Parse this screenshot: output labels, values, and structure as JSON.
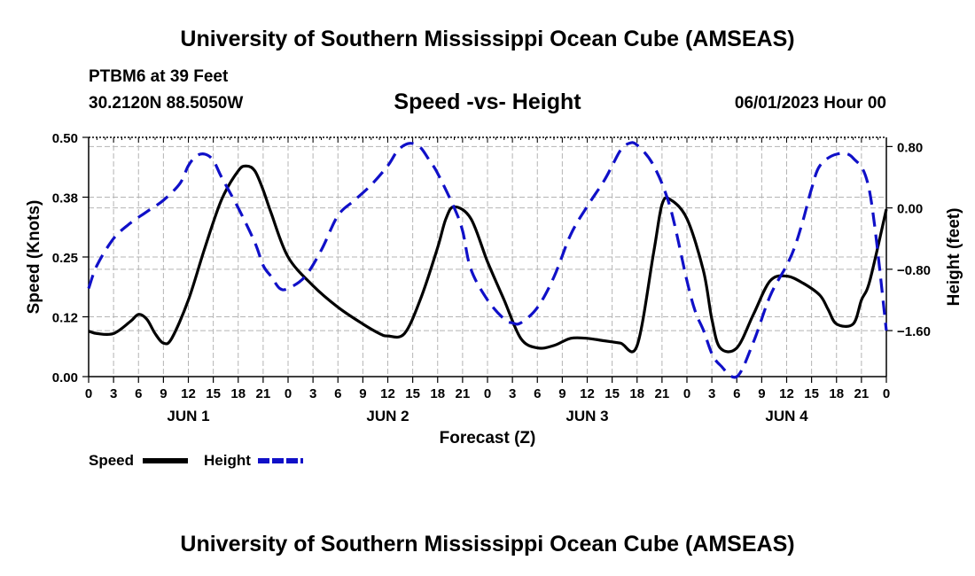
{
  "header": {
    "title": "University of Southern Mississippi Ocean Cube (AMSEAS)",
    "station": "PTBM6 at 39 Feet",
    "coords": "30.2120N  88.5050W",
    "subtitle": "Speed -vs- Height",
    "date": "06/01/2023 Hour 00"
  },
  "footer": {
    "title": "University of Southern Mississippi Ocean Cube (AMSEAS)"
  },
  "legend": {
    "speed_label": "Speed",
    "height_label": "Height"
  },
  "colors": {
    "speed": "#000000",
    "height": "#1010c8",
    "grid": "#b4b4b4"
  },
  "chart_data": {
    "type": "line",
    "title": "Speed -vs- Height",
    "xlabel": "Forecast (Z)",
    "ylabel": "Speed (Knots)",
    "y2label": "Height (feet)",
    "xlim": [
      0,
      96
    ],
    "ylim": [
      0,
      0.5
    ],
    "y2lim": [
      -2.2,
      0.92
    ],
    "x_ticks": [
      0,
      3,
      6,
      9,
      12,
      15,
      18,
      21,
      24,
      27,
      30,
      33,
      36,
      39,
      42,
      45,
      48,
      51,
      54,
      57,
      60,
      63,
      66,
      69,
      72,
      75,
      78,
      81,
      84,
      87,
      90,
      93,
      96
    ],
    "x_tick_labels": [
      "0",
      "3",
      "6",
      "9",
      "12",
      "15",
      "18",
      "21",
      "0",
      "3",
      "6",
      "9",
      "12",
      "15",
      "18",
      "21",
      "0",
      "3",
      "6",
      "9",
      "12",
      "15",
      "18",
      "21",
      "0",
      "3",
      "6",
      "9",
      "12",
      "15",
      "18",
      "21",
      "0"
    ],
    "day_labels": [
      {
        "x": 12,
        "label": "JUN 1"
      },
      {
        "x": 36,
        "label": "JUN 2"
      },
      {
        "x": 60,
        "label": "JUN 3"
      },
      {
        "x": 84,
        "label": "JUN 4"
      }
    ],
    "y_ticks": [
      0,
      0.125,
      0.25,
      0.375,
      0.5
    ],
    "y_tick_labels": [
      "0.00",
      "0.12",
      "0.25",
      "0.38",
      "0.50"
    ],
    "y2_ticks": [
      0.8,
      0,
      -0.8,
      -1.6
    ],
    "y2_tick_labels": [
      "0.80",
      "0.00",
      "−0.80",
      "−1.60"
    ],
    "grid": true,
    "series": [
      {
        "name": "Speed",
        "axis": "left",
        "style": "solid",
        "x": [
          0,
          1,
          3,
          5,
          6,
          7,
          8,
          9,
          10,
          12,
          14,
          16,
          18,
          19,
          20,
          21,
          22,
          24,
          27,
          30,
          33,
          35,
          36,
          38,
          40,
          42,
          43,
          44,
          46,
          48,
          50,
          52,
          54,
          56,
          58,
          60,
          62,
          64,
          66,
          68,
          69,
          70,
          72,
          74,
          75,
          76,
          78,
          80,
          82,
          84,
          86,
          88,
          89,
          90,
          92,
          93,
          94,
          96
        ],
        "y": [
          0.095,
          0.09,
          0.09,
          0.115,
          0.13,
          0.12,
          0.09,
          0.07,
          0.08,
          0.16,
          0.27,
          0.37,
          0.43,
          0.44,
          0.43,
          0.39,
          0.34,
          0.25,
          0.19,
          0.145,
          0.11,
          0.09,
          0.085,
          0.09,
          0.165,
          0.27,
          0.33,
          0.355,
          0.33,
          0.24,
          0.16,
          0.08,
          0.06,
          0.065,
          0.08,
          0.08,
          0.075,
          0.07,
          0.065,
          0.26,
          0.36,
          0.37,
          0.33,
          0.22,
          0.12,
          0.06,
          0.06,
          0.13,
          0.2,
          0.21,
          0.195,
          0.17,
          0.14,
          0.11,
          0.11,
          0.16,
          0.2,
          0.35
        ]
      },
      {
        "name": "Height",
        "axis": "right",
        "style": "dashed",
        "x": [
          0,
          1,
          3,
          5,
          7,
          9,
          11,
          12,
          13,
          14,
          15,
          16,
          18,
          20,
          21,
          22,
          23,
          24,
          26,
          28,
          30,
          32,
          34,
          36,
          37,
          38,
          39,
          40,
          41,
          42,
          44,
          45,
          46,
          48,
          50,
          51,
          52,
          54,
          56,
          58,
          60,
          62,
          63,
          64,
          65,
          66,
          68,
          70,
          72,
          73,
          74,
          75,
          76,
          78,
          80,
          82,
          84,
          85,
          86,
          87,
          88,
          90,
          92,
          94,
          96
        ],
        "y": [
          -1.05,
          -0.75,
          -0.4,
          -0.2,
          -0.05,
          0.1,
          0.32,
          0.55,
          0.68,
          0.7,
          0.62,
          0.4,
          0.0,
          -0.45,
          -0.75,
          -0.9,
          -1.05,
          -1.05,
          -0.9,
          -0.55,
          -0.1,
          0.1,
          0.3,
          0.55,
          0.72,
          0.82,
          0.84,
          0.78,
          0.62,
          0.45,
          0.0,
          -0.3,
          -0.8,
          -1.2,
          -1.45,
          -1.5,
          -1.5,
          -1.3,
          -0.9,
          -0.35,
          0.02,
          0.35,
          0.55,
          0.75,
          0.84,
          0.82,
          0.55,
          0.0,
          -0.95,
          -1.35,
          -1.6,
          -1.9,
          -2.05,
          -2.2,
          -1.75,
          -1.15,
          -0.75,
          -0.5,
          -0.15,
          0.25,
          0.55,
          0.7,
          0.65,
          0.2,
          -1.6
        ]
      }
    ]
  }
}
